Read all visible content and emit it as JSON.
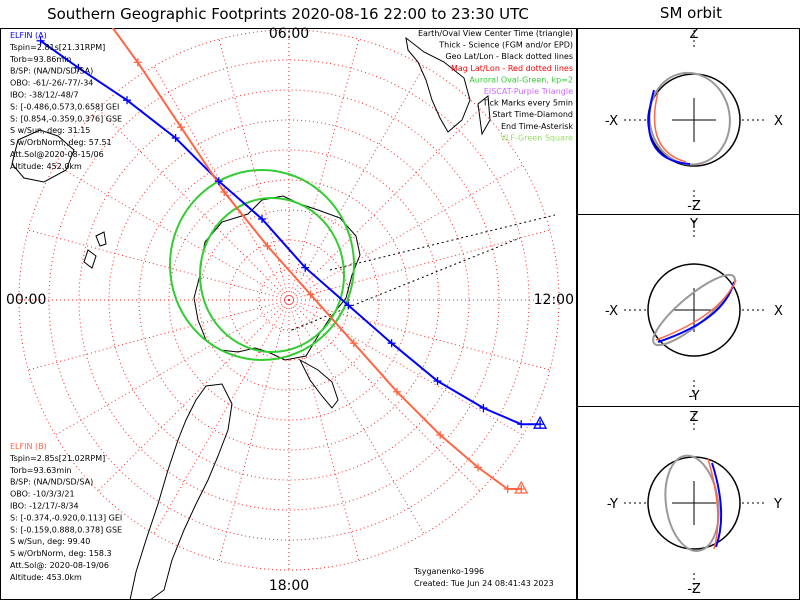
{
  "title": "Southern Geographic Footprints 2020-08-16 22:00 to 23:30 UTC",
  "orbit_title": "SM orbit",
  "clock_labels": {
    "top": "06:00",
    "left": "00:00",
    "right": "12:00",
    "bottom": "18:00"
  },
  "legend": [
    {
      "text": "Earth/Oval View Center Time (triangle)",
      "color": "#000000"
    },
    {
      "text": "Thick - Science (FGM and/or EPD)",
      "color": "#000000"
    },
    {
      "text": "Geo Lat/Lon - Black dotted lines",
      "color": "#000000"
    },
    {
      "text": "Mag Lat/Lon - Red dotted lines",
      "color": "#ff0000"
    },
    {
      "text": "Auroral Oval-Green, kp=2",
      "color": "#33cc33"
    },
    {
      "text": "EISCAT-Purple Triangle",
      "color": "#cc66ff"
    },
    {
      "text": "Tick Marks every 5min",
      "color": "#000000"
    },
    {
      "text": "Start Time-Diamond",
      "color": "#000000"
    },
    {
      "text": "End Time-Asterisk",
      "color": "#000000"
    },
    {
      "text": "VLF-Green Square",
      "color": "#99dd66"
    }
  ],
  "elfin_a": {
    "color": "#0000ff",
    "lines": [
      "ELFIN (A)",
      "Tspin=2.81s[21.31RPM]",
      "Torb=93.86min",
      "B/SP: (NA/ND/SD/SA)",
      "OBO: -61/-26/-77/-34",
      "IBO: -38/12/-48/7",
      "S: [-0.486,0.573,0.658] GEI",
      "S: [0.854,-0.359,0.376] GSE",
      "S w/Sun, deg: 31.15",
      "S w/OrbNorm, deg: 57.51",
      "Att.Sol@2020-08-15/06",
      "Altitude: 452.0km"
    ]
  },
  "elfin_b": {
    "color": "#ff6644",
    "lines": [
      "ELFIN (B)",
      "Tspin=2.85s[21.02RPM]",
      "Torb=93.63min",
      "B/SP: (NA/ND/SD/SA)",
      "OBO: -10/3/3/21",
      "IBO: -12/17/-8/34",
      "S: [-0.374,-0.920,0.113] GEI",
      "S: [-0.159,0.888,0.378] GSE",
      "S w/Sun, deg: 99.40",
      "S w/OrbNorm, deg: 158.3",
      "Att.Sol@: 2020-08-19/06",
      "Altitude: 453.0km"
    ]
  },
  "footer": {
    "model": "Tsyganenko-1996",
    "created": "Created: Tue Jun 24 08:41:43 2023"
  },
  "orbit_panels": [
    {
      "top": "Z",
      "bottom": "-Z",
      "left": "-X",
      "right": "X"
    },
    {
      "top": "Y",
      "bottom": "-Y",
      "left": "-X",
      "right": "X"
    },
    {
      "top": "Z",
      "bottom": "-Z",
      "left": "-Y",
      "right": "Y"
    }
  ],
  "chart_data": {
    "type": "scatter",
    "projection": "south polar, magnetic local time",
    "series": [
      {
        "name": "ELFIN (A)",
        "color": "#0000ff",
        "x": [
          -0.92,
          -0.78,
          -0.6,
          -0.42,
          -0.26,
          -0.1,
          0.06,
          0.22,
          0.38,
          0.55,
          0.72,
          0.86,
          0.93
        ],
        "y": [
          0.96,
          0.86,
          0.74,
          0.6,
          0.44,
          0.3,
          0.12,
          -0.02,
          -0.16,
          -0.3,
          -0.4,
          -0.46,
          -0.46
        ]
      },
      {
        "name": "ELFIN (B)",
        "color": "#ff6644",
        "x": [
          -0.72,
          -0.56,
          -0.4,
          -0.24,
          -0.08,
          0.08,
          0.24,
          0.4,
          0.56,
          0.7,
          0.81,
          0.86
        ],
        "y": [
          1.1,
          0.88,
          0.64,
          0.4,
          0.2,
          0.02,
          -0.16,
          -0.34,
          -0.5,
          -0.62,
          -0.7,
          -0.7
        ]
      }
    ]
  }
}
